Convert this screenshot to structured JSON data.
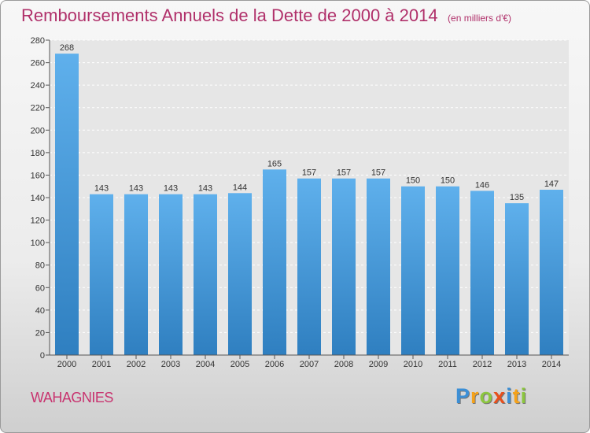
{
  "chart_data": {
    "type": "bar",
    "title": "Remboursements Annuels de la Dette de 2000 à 2014",
    "subtitle": "(en milliers d'€)",
    "categories": [
      "2000",
      "2001",
      "2002",
      "2003",
      "2004",
      "2005",
      "2006",
      "2007",
      "2008",
      "2009",
      "2010",
      "2011",
      "2012",
      "2013",
      "2014"
    ],
    "values": [
      268,
      143,
      143,
      143,
      143,
      144,
      165,
      157,
      157,
      157,
      150,
      150,
      146,
      135,
      147
    ],
    "ylim": [
      0,
      280
    ],
    "yticks": [
      0,
      20,
      40,
      60,
      80,
      100,
      120,
      140,
      160,
      180,
      200,
      220,
      240,
      260,
      280
    ],
    "grid": true,
    "bar_color_top": "#5fb0ec",
    "bar_color_bottom": "#2f7fc0"
  },
  "commune": "WAHAGNIES",
  "logo": {
    "text": "Proxiti",
    "letters": [
      {
        "ch": "P",
        "color": "#3c8fd6"
      },
      {
        "ch": "r",
        "color": "#f5a21a"
      },
      {
        "ch": "o",
        "color": "#8cc63f"
      },
      {
        "ch": "x",
        "color": "#e84f1c"
      },
      {
        "ch": "i",
        "color": "#3c8fd6"
      },
      {
        "ch": "t",
        "color": "#f5a21a"
      },
      {
        "ch": "i",
        "color": "#8cc63f"
      }
    ]
  }
}
